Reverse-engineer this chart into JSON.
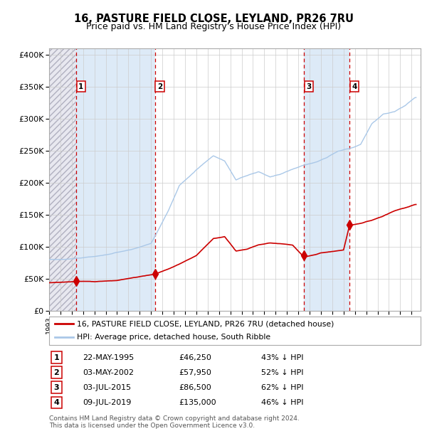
{
  "title": "16, PASTURE FIELD CLOSE, LEYLAND, PR26 7RU",
  "subtitle": "Price paid vs. HM Land Registry's House Price Index (HPI)",
  "ylim": [
    0,
    410000
  ],
  "yticks": [
    0,
    50000,
    100000,
    150000,
    200000,
    250000,
    300000,
    350000,
    400000
  ],
  "ytick_labels": [
    "£0",
    "£50K",
    "£100K",
    "£150K",
    "£200K",
    "£250K",
    "£300K",
    "£350K",
    "£400K"
  ],
  "xlim_start": 1993.0,
  "xlim_end": 2025.8,
  "sale_dates": [
    1995.385,
    2002.335,
    2015.5,
    2019.52
  ],
  "sale_prices": [
    46250,
    57950,
    86500,
    135000
  ],
  "sale_labels": [
    "1",
    "2",
    "3",
    "4"
  ],
  "hpi_color": "#aac8e8",
  "price_color": "#cc0000",
  "dashed_color": "#cc0000",
  "bg_stripe_color": "#ddeaf7",
  "grid_color": "#cccccc",
  "legend_line1": "16, PASTURE FIELD CLOSE, LEYLAND, PR26 7RU (detached house)",
  "legend_line2": "HPI: Average price, detached house, South Ribble",
  "table_entries": [
    [
      "1",
      "22-MAY-1995",
      "£46,250",
      "43% ↓ HPI"
    ],
    [
      "2",
      "03-MAY-2002",
      "£57,950",
      "52% ↓ HPI"
    ],
    [
      "3",
      "03-JUL-2015",
      "£86,500",
      "62% ↓ HPI"
    ],
    [
      "4",
      "09-JUL-2019",
      "£135,000",
      "46% ↓ HPI"
    ]
  ],
  "footer": "Contains HM Land Registry data © Crown copyright and database right 2024.\nThis data is licensed under the Open Government Licence v3.0.",
  "hpi_key_years": [
    1993.0,
    1995.0,
    1996.0,
    1998.0,
    2000.0,
    2002.0,
    2003.5,
    2004.5,
    2006.0,
    2007.5,
    2008.5,
    2009.5,
    2010.5,
    2011.5,
    2012.5,
    2013.5,
    2014.5,
    2015.5,
    2016.5,
    2017.5,
    2018.5,
    2019.5,
    2020.5,
    2021.5,
    2022.5,
    2023.5,
    2024.5,
    2025.3
  ],
  "hpi_key_vals": [
    80000,
    82000,
    84000,
    88000,
    95000,
    105000,
    155000,
    195000,
    220000,
    243000,
    235000,
    205000,
    212000,
    218000,
    210000,
    215000,
    222000,
    228000,
    232000,
    238000,
    248000,
    252000,
    258000,
    290000,
    305000,
    308000,
    318000,
    330000
  ],
  "red_key_years": [
    1993.0,
    1995.385,
    1997.0,
    1999.0,
    2002.335,
    2004.0,
    2006.0,
    2007.5,
    2008.5,
    2009.5,
    2010.5,
    2011.5,
    2012.5,
    2013.5,
    2014.5,
    2015.5,
    2016.5,
    2017.0,
    2018.0,
    2019.0,
    2019.52,
    2020.5,
    2021.5,
    2022.5,
    2023.5,
    2024.5,
    2025.3
  ],
  "red_key_vals": [
    44000,
    46250,
    46000,
    48000,
    57950,
    70000,
    88000,
    115000,
    118000,
    95000,
    98000,
    105000,
    108000,
    107000,
    105000,
    86500,
    90000,
    93000,
    95000,
    97000,
    135000,
    138000,
    143000,
    150000,
    158000,
    163000,
    168000
  ]
}
